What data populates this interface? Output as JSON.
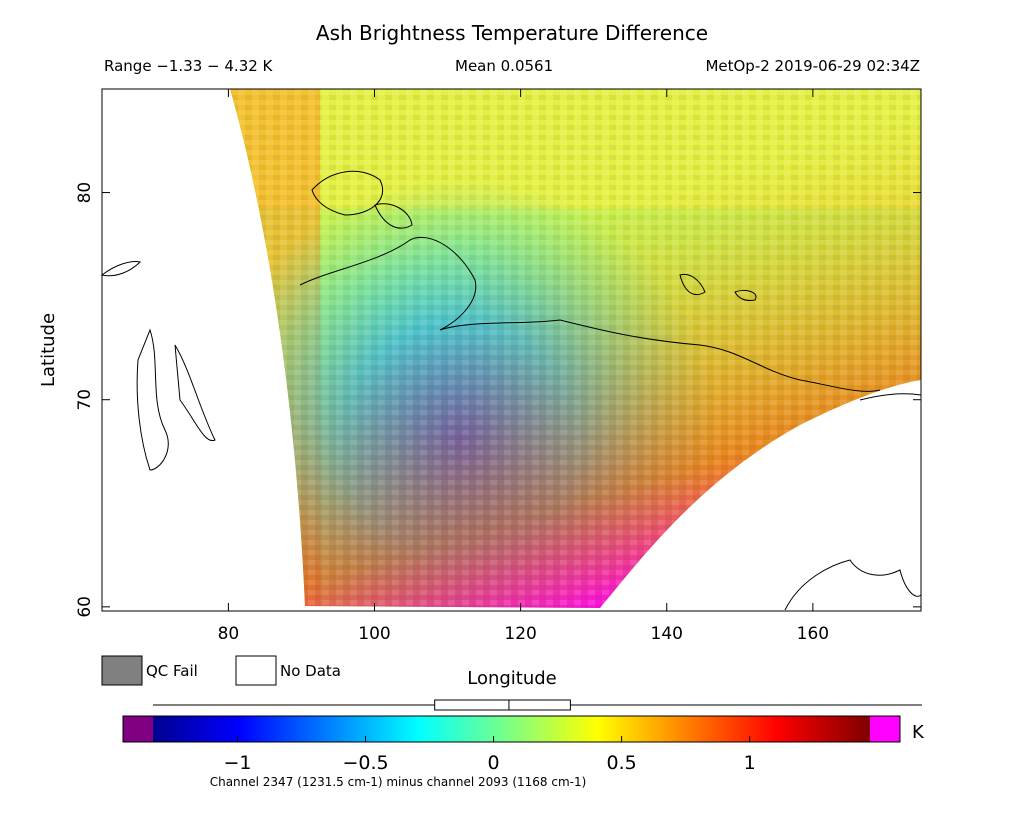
{
  "header": {
    "title": "Ash Brightness Temperature Difference",
    "range": "Range −1.33 − 4.32 K",
    "mean": "Mean 0.0561",
    "source": "MetOp-2 2019-06-29 02:34Z"
  },
  "chart_data": {
    "type": "map",
    "x_label": "Longitude",
    "y_label": "Latitude",
    "xlim": [
      62.7,
      174.8
    ],
    "ylim": [
      59.8,
      85.0
    ],
    "xticks": [
      80,
      100,
      120,
      140,
      160
    ],
    "yticks": [
      60,
      70,
      80
    ]
  },
  "legend": {
    "items": [
      {
        "label": "QC Fail",
        "color": "#808080"
      },
      {
        "label": "No Data",
        "color": "#ffffff"
      }
    ]
  },
  "colorbar": {
    "lim": [
      -1.33,
      1.47
    ],
    "ticks": [
      {
        "value": -1,
        "label": "−1"
      },
      {
        "value": -0.5,
        "label": "−0.5"
      },
      0,
      0.5,
      1
    ],
    "unit": "K",
    "under_color": "#800080",
    "over_color": "#ff00ff",
    "box": [
      -0.23,
      0.06,
      0.3
    ],
    "caption": "Channel 2347 (1231.5 cm-1) minus channel 2093 (1168 cm-1)"
  }
}
